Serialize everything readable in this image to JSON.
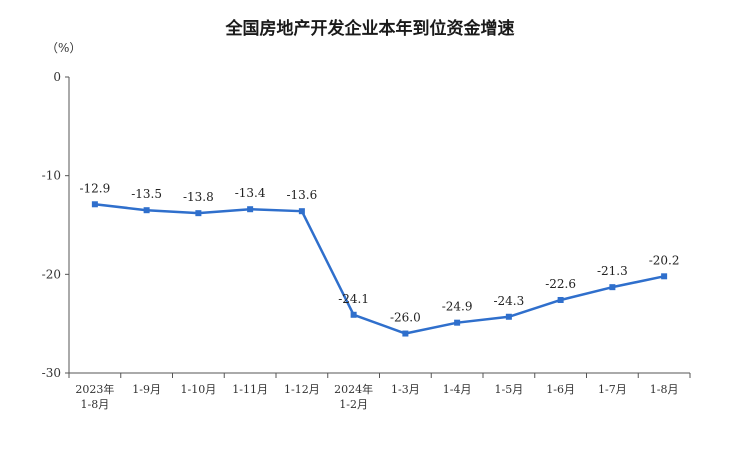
{
  "chart_data": {
    "type": "line",
    "title": "全国房地产开发企业本年到位资金增速",
    "unit": "（%）",
    "ylim": [
      -30,
      0
    ],
    "yticks": [
      0,
      -10,
      -20,
      -30
    ],
    "categories": [
      [
        "2023年",
        "1-8月"
      ],
      [
        "1-9月"
      ],
      [
        "1-10月"
      ],
      [
        "1-11月"
      ],
      [
        "1-12月"
      ],
      [
        "2024年",
        "1-2月"
      ],
      [
        "1-3月"
      ],
      [
        "1-4月"
      ],
      [
        "1-5月"
      ],
      [
        "1-6月"
      ],
      [
        "1-7月"
      ],
      [
        "1-8月"
      ]
    ],
    "series": [
      {
        "values": [
          -12.9,
          -13.5,
          -13.8,
          -13.4,
          -13.6,
          -24.1,
          -26.0,
          -24.9,
          -24.3,
          -22.6,
          -21.3,
          -20.2
        ],
        "labels": [
          "-12.9",
          "-13.5",
          "-13.8",
          "-13.4",
          "-13.6",
          "-24.1",
          "-26.0",
          "-24.9",
          "-24.3",
          "-22.6",
          "-21.3",
          "-20.2"
        ],
        "color": "#2f6fcc"
      }
    ],
    "grid": false
  }
}
